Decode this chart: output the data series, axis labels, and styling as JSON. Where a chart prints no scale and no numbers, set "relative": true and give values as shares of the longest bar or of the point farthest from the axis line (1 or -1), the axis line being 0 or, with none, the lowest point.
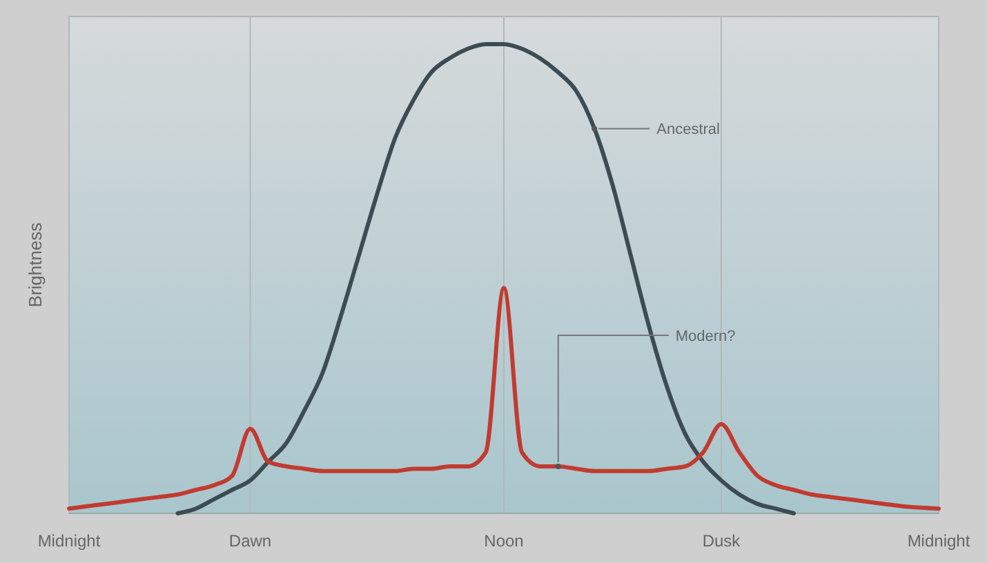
{
  "chart_data": {
    "type": "line",
    "ylabel": "Brightness",
    "relative": true,
    "grid": "x",
    "legend": false,
    "marker": "none",
    "line_style": "solid",
    "categories": [
      "Midnight",
      null,
      null,
      null,
      null,
      null,
      null,
      null,
      null,
      null,
      "Dawn",
      null,
      null,
      null,
      null,
      null,
      null,
      null,
      null,
      null,
      null,
      null,
      null,
      null,
      "Noon",
      null,
      null,
      null,
      null,
      null,
      null,
      null,
      null,
      null,
      null,
      null,
      "Dusk",
      null,
      null,
      null,
      null,
      null,
      null,
      null,
      null,
      null,
      null,
      null,
      "Midnight"
    ],
    "series": [
      {
        "name": "Ancestral",
        "color": "#3c4c52",
        "values": [
          null,
          null,
          null,
          null,
          null,
          null,
          0,
          0.01,
          0.03,
          0.05,
          0.07,
          0.11,
          0.15,
          0.22,
          0.3,
          0.42,
          0.55,
          0.68,
          0.8,
          0.88,
          0.94,
          0.97,
          0.99,
          1.0,
          1.0,
          0.99,
          0.97,
          0.94,
          0.9,
          0.82,
          0.7,
          0.55,
          0.4,
          0.27,
          0.17,
          0.11,
          0.07,
          0.04,
          0.02,
          0.01,
          0,
          null,
          null,
          null,
          null,
          null,
          null,
          null,
          null
        ]
      },
      {
        "name": "Modern?",
        "color": "#c23b30",
        "values": [
          0.01,
          0.015,
          0.02,
          0.025,
          0.03,
          0.035,
          0.04,
          0.05,
          0.06,
          0.08,
          0.18,
          0.11,
          0.1,
          0.095,
          0.09,
          0.09,
          0.09,
          0.09,
          0.09,
          0.095,
          0.095,
          0.1,
          0.1,
          0.13,
          0.48,
          0.13,
          0.1,
          0.1,
          0.095,
          0.09,
          0.09,
          0.09,
          0.09,
          0.095,
          0.1,
          0.13,
          0.19,
          0.13,
          0.08,
          0.06,
          0.05,
          0.04,
          0.035,
          0.03,
          0.025,
          0.02,
          0.015,
          0.012,
          0.01
        ]
      }
    ]
  }
}
